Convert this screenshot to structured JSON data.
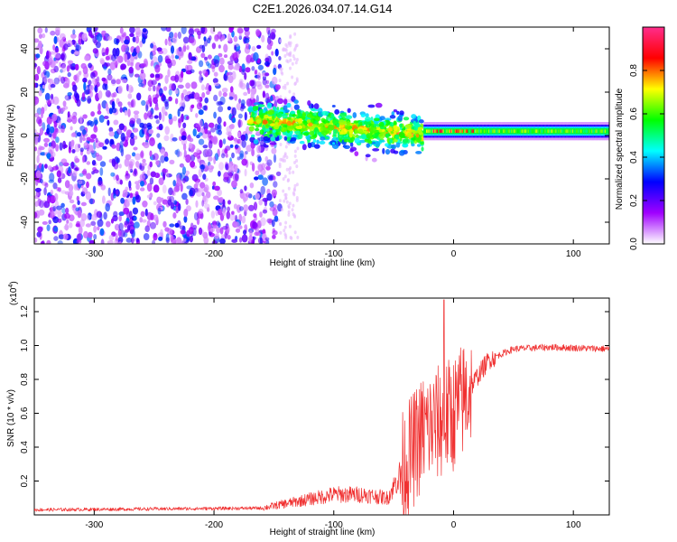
{
  "title": "C2E1.2026.034.07.14.G14",
  "chart_data": [
    {
      "type": "heatmap",
      "name": "spectrogram",
      "xlabel": "Height of straight line (km)",
      "ylabel": "Frequency (Hz)",
      "xlim": [
        -350,
        130
      ],
      "ylim": [
        -50,
        50
      ],
      "xticks": [
        -300,
        -200,
        -100,
        0,
        100
      ],
      "yticks": [
        -40,
        -20,
        0,
        20,
        40
      ],
      "xtick_labels": [
        "-300",
        "-200",
        "-100",
        "0",
        "100"
      ],
      "ytick_labels": [
        "-40",
        "-20",
        "0",
        "20",
        "40"
      ],
      "colorbar": {
        "label": "Normalized spectral amplitude",
        "range": [
          0,
          1
        ],
        "ticks": [
          0.0,
          0.2,
          0.4,
          0.6,
          0.8
        ],
        "tick_labels": [
          "0.0",
          "0.2",
          "0.4",
          "0.6",
          "0.8"
        ],
        "colors": [
          "#ffffff",
          "#a000ff",
          "#0000ff",
          "#00ffff",
          "#00ff00",
          "#ffff00",
          "#ff0000",
          "#ff2d8c"
        ]
      },
      "regions": [
        {
          "name": "noise",
          "x": [
            -350,
            -145
          ],
          "freq_spread": 50,
          "amp": [
            0.05,
            0.35
          ]
        },
        {
          "name": "transition",
          "x": [
            -170,
            -25
          ],
          "center_freq": [
            7,
            0
          ],
          "freq_spread": 12,
          "amp": [
            0.3,
            0.7
          ]
        },
        {
          "name": "tone",
          "x": [
            -25,
            130
          ],
          "center_freq": 2,
          "freq_spread": 3,
          "amp": [
            0.5,
            0.95
          ]
        }
      ]
    },
    {
      "type": "line",
      "name": "snr",
      "xlabel": "Height of straight line (km)",
      "ylabel": "SNR (10 * v/v)",
      "multiplier_label": "(x10",
      "multiplier_exp": "4",
      "multiplier_close": ")",
      "xlim": [
        -350,
        130
      ],
      "ylim": [
        0,
        1.28
      ],
      "xticks": [
        -300,
        -200,
        -100,
        0,
        100
      ],
      "yticks": [
        0.2,
        0.4,
        0.6,
        0.8,
        1.0,
        1.2
      ],
      "xtick_labels": [
        "-300",
        "-200",
        "-100",
        "0",
        "100"
      ],
      "ytick_labels": [
        "0.2",
        "0.4",
        "0.6",
        "0.8",
        "1.0",
        "1.2"
      ],
      "color": "#f03030",
      "key_points": {
        "x": [
          -350,
          -160,
          -130,
          -100,
          -75,
          -55,
          -40,
          -25,
          -10,
          0,
          10,
          20,
          30,
          50,
          80,
          130
        ],
        "y": [
          0.03,
          0.04,
          0.08,
          0.12,
          0.12,
          0.1,
          0.3,
          0.5,
          0.55,
          0.6,
          0.7,
          0.82,
          0.92,
          0.98,
          0.99,
          0.98
        ]
      },
      "spike": {
        "x": -8,
        "y": 1.27
      }
    }
  ]
}
